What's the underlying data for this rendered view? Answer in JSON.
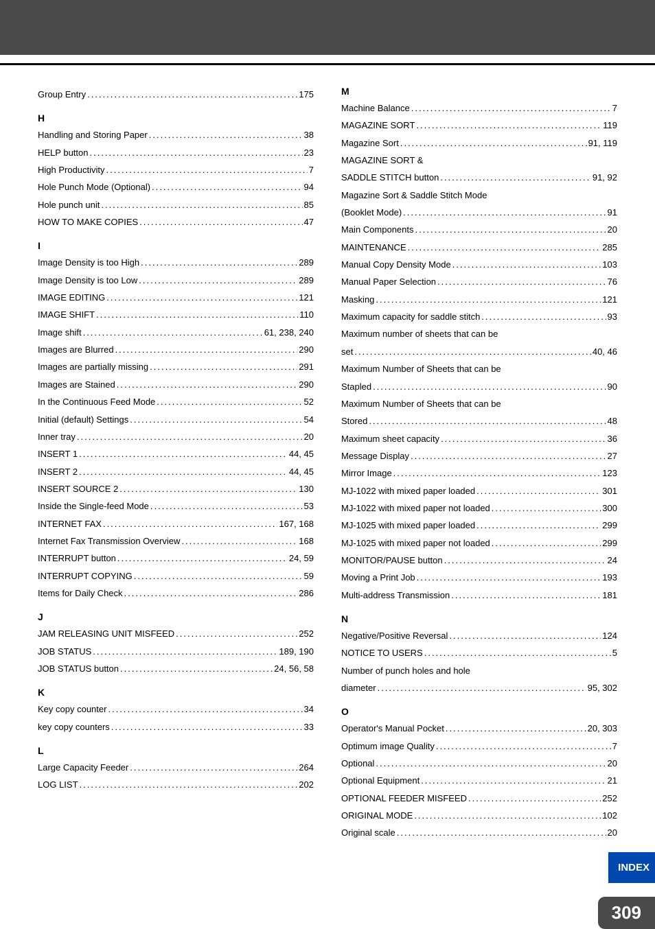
{
  "colors": {
    "headerGray": "#4a4a4a",
    "indexBlue": "#0048b0",
    "text": "#000000",
    "white": "#ffffff"
  },
  "typography": {
    "entryFontSize": 13,
    "letterFontSize": 14,
    "pageNumFontSize": 26,
    "indexFontSize": 15
  },
  "leftColumn": [
    {
      "type": "entry",
      "label": "Group Entry",
      "page": "175"
    },
    {
      "type": "letter",
      "text": "H"
    },
    {
      "type": "entry",
      "label": "Handling and Storing Paper",
      "page": "38"
    },
    {
      "type": "entry",
      "label": "HELP button",
      "page": "23"
    },
    {
      "type": "entry",
      "label": "High Productivity",
      "page": "7"
    },
    {
      "type": "entry",
      "label": "Hole Punch Mode (Optional)",
      "page": "94"
    },
    {
      "type": "entry",
      "label": "Hole punch unit",
      "page": "85"
    },
    {
      "type": "entry",
      "label": "HOW TO MAKE COPIES",
      "page": "47"
    },
    {
      "type": "letter",
      "text": "I"
    },
    {
      "type": "entry",
      "label": "Image Density is too High",
      "page": "289"
    },
    {
      "type": "entry",
      "label": "Image Density is too Low",
      "page": "289"
    },
    {
      "type": "entry",
      "label": "IMAGE EDITING",
      "page": "121"
    },
    {
      "type": "entry",
      "label": "IMAGE SHIFT",
      "page": "110"
    },
    {
      "type": "entry",
      "label": "Image shift",
      "page": "61, 238, 240"
    },
    {
      "type": "entry",
      "label": "Images are Blurred",
      "page": "290"
    },
    {
      "type": "entry",
      "label": "Images are partially missing",
      "page": "291"
    },
    {
      "type": "entry",
      "label": "Images are Stained",
      "page": "290"
    },
    {
      "type": "entry",
      "label": "In the Continuous Feed Mode",
      "page": "52"
    },
    {
      "type": "entry",
      "label": "Initial (default) Settings",
      "page": "54"
    },
    {
      "type": "entry",
      "label": "Inner tray",
      "page": "20"
    },
    {
      "type": "entry",
      "label": "INSERT 1",
      "page": "44, 45"
    },
    {
      "type": "entry",
      "label": "INSERT 2",
      "page": "44, 45"
    },
    {
      "type": "entry",
      "label": "INSERT SOURCE 2",
      "page": "130"
    },
    {
      "type": "entry",
      "label": "Inside the Single-feed Mode",
      "page": "53"
    },
    {
      "type": "entry",
      "label": "INTERNET FAX",
      "page": "167, 168"
    },
    {
      "type": "entry",
      "label": "Internet Fax Transmission Overview",
      "page": "168"
    },
    {
      "type": "entry",
      "label": "INTERRUPT button",
      "page": "24, 59"
    },
    {
      "type": "entry",
      "label": "INTERRUPT COPYING",
      "page": "59"
    },
    {
      "type": "entry",
      "label": "Items for Daily Check",
      "page": "286"
    },
    {
      "type": "letter",
      "text": "J"
    },
    {
      "type": "entry",
      "label": "JAM RELEASING UNIT MISFEED",
      "page": "252"
    },
    {
      "type": "entry",
      "label": "JOB STATUS",
      "page": "189, 190"
    },
    {
      "type": "entry",
      "label": "JOB STATUS button",
      "page": "24, 56, 58"
    },
    {
      "type": "letter",
      "text": "K"
    },
    {
      "type": "entry",
      "label": "Key copy counter",
      "page": "34"
    },
    {
      "type": "entry",
      "label": "key copy counters",
      "page": "33"
    },
    {
      "type": "letter",
      "text": "L"
    },
    {
      "type": "entry",
      "label": "Large Capacity Feeder",
      "page": "264"
    },
    {
      "type": "entry",
      "label": "LOG LIST",
      "page": "202"
    }
  ],
  "rightColumn": [
    {
      "type": "letter",
      "text": "M",
      "first": true
    },
    {
      "type": "entry",
      "label": "Machine Balance",
      "page": "7"
    },
    {
      "type": "entry",
      "label": "MAGAZINE SORT",
      "page": "119"
    },
    {
      "type": "entry",
      "label": "Magazine Sort",
      "page": "91, 119"
    },
    {
      "type": "continuation",
      "label": "MAGAZINE SORT &"
    },
    {
      "type": "entry",
      "label": "SADDLE STITCH button",
      "page": "91, 92"
    },
    {
      "type": "continuation",
      "label": "Magazine Sort & Saddle Stitch Mode"
    },
    {
      "type": "entry",
      "label": "(Booklet Mode)",
      "page": "91"
    },
    {
      "type": "entry",
      "label": "Main Components",
      "page": "20"
    },
    {
      "type": "entry",
      "label": "MAINTENANCE",
      "page": "285"
    },
    {
      "type": "entry",
      "label": "Manual Copy Density Mode",
      "page": "103"
    },
    {
      "type": "entry",
      "label": "Manual Paper Selection",
      "page": "76"
    },
    {
      "type": "entry",
      "label": "Masking",
      "page": "121"
    },
    {
      "type": "entry",
      "label": "Maximum capacity for saddle stitch",
      "page": "93"
    },
    {
      "type": "continuation",
      "label": "Maximum number of sheets that can be"
    },
    {
      "type": "entry",
      "label": "set",
      "page": "40, 46"
    },
    {
      "type": "continuation",
      "label": "Maximum Number of Sheets that can be"
    },
    {
      "type": "entry",
      "label": "Stapled",
      "page": "90"
    },
    {
      "type": "continuation",
      "label": "Maximum Number of Sheets that can be"
    },
    {
      "type": "entry",
      "label": "Stored",
      "page": "48"
    },
    {
      "type": "entry",
      "label": "Maximum sheet capacity",
      "page": "36"
    },
    {
      "type": "entry",
      "label": "Message Display",
      "page": "27"
    },
    {
      "type": "entry",
      "label": "Mirror Image",
      "page": "123"
    },
    {
      "type": "entry",
      "label": "MJ-1022 with mixed paper loaded",
      "page": "301"
    },
    {
      "type": "entry",
      "label": "MJ-1022 with mixed paper not loaded",
      "page": "300"
    },
    {
      "type": "entry",
      "label": "MJ-1025 with mixed paper loaded",
      "page": "299"
    },
    {
      "type": "entry",
      "label": "MJ-1025 with mixed paper not loaded",
      "page": "299"
    },
    {
      "type": "entry",
      "label": "MONITOR/PAUSE button",
      "page": "24"
    },
    {
      "type": "entry",
      "label": "Moving a Print Job",
      "page": "193"
    },
    {
      "type": "entry",
      "label": "Multi-address Transmission",
      "page": "181"
    },
    {
      "type": "letter",
      "text": "N"
    },
    {
      "type": "entry",
      "label": "Negative/Positive Reversal",
      "page": "124"
    },
    {
      "type": "entry",
      "label": "NOTICE TO USERS",
      "page": "5"
    },
    {
      "type": "continuation",
      "label": "Number of punch holes and hole"
    },
    {
      "type": "entry",
      "label": "diameter",
      "page": "95, 302"
    },
    {
      "type": "letter",
      "text": "O"
    },
    {
      "type": "entry",
      "label": "Operator's Manual Pocket",
      "page": "20, 303"
    },
    {
      "type": "entry",
      "label": "Optimum image Quality",
      "page": "7"
    },
    {
      "type": "entry",
      "label": "Optional",
      "page": "20"
    },
    {
      "type": "entry",
      "label": "Optional Equipment",
      "page": "21"
    },
    {
      "type": "entry",
      "label": "OPTIONAL FEEDER MISFEED",
      "page": "252"
    },
    {
      "type": "entry",
      "label": "ORIGINAL MODE",
      "page": "102"
    },
    {
      "type": "entry",
      "label": "Original scale",
      "page": "20"
    }
  ],
  "footer": {
    "indexLabel": "INDEX",
    "pageNumber": "309"
  }
}
